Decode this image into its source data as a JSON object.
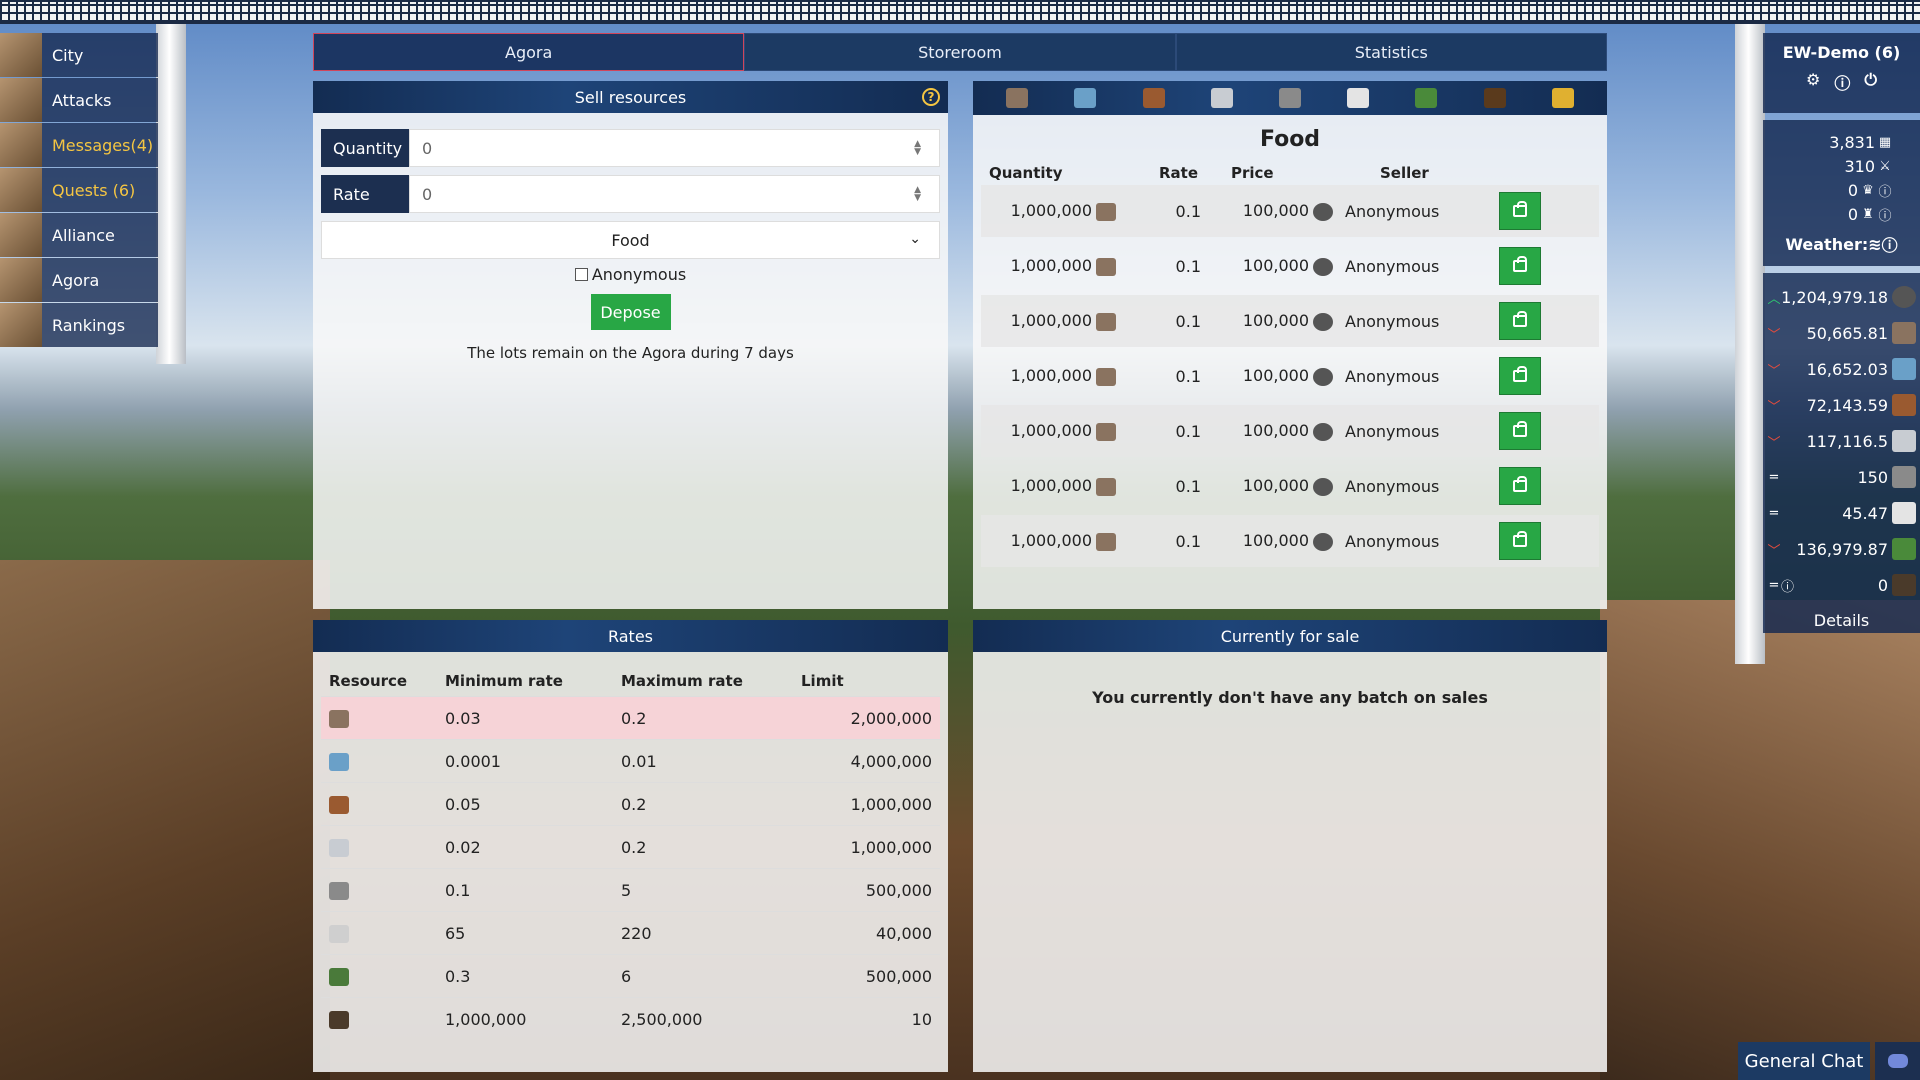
{
  "tabs": [
    {
      "label": "Agora"
    },
    {
      "label": "Storeroom"
    },
    {
      "label": "Statistics"
    }
  ],
  "nav": [
    {
      "label": "City"
    },
    {
      "label": "Attacks"
    },
    {
      "label": "Messages(4)"
    },
    {
      "label": "Quests (6)"
    },
    {
      "label": "Alliance"
    },
    {
      "label": "Agora"
    },
    {
      "label": "Rankings"
    }
  ],
  "sell": {
    "title": "Sell resources",
    "help": "?",
    "quantity_label": "Quantity",
    "quantity_value": "0",
    "rate_label": "Rate",
    "rate_value": "0",
    "resource": "Food",
    "anonymous_label": "Anonymous",
    "depose_label": "Depose",
    "note": "The lots remain on the Agora during 7 days"
  },
  "market": {
    "title": "Food",
    "headers": {
      "quantity": "Quantity",
      "rate": "Rate",
      "price": "Price",
      "seller": "Seller"
    },
    "rows": [
      {
        "quantity": "1,000,000",
        "rate": "0.1",
        "price": "100,000",
        "seller": "Anonymous"
      },
      {
        "quantity": "1,000,000",
        "rate": "0.1",
        "price": "100,000",
        "seller": "Anonymous"
      },
      {
        "quantity": "1,000,000",
        "rate": "0.1",
        "price": "100,000",
        "seller": "Anonymous"
      },
      {
        "quantity": "1,000,000",
        "rate": "0.1",
        "price": "100,000",
        "seller": "Anonymous"
      },
      {
        "quantity": "1,000,000",
        "rate": "0.1",
        "price": "100,000",
        "seller": "Anonymous"
      },
      {
        "quantity": "1,000,000",
        "rate": "0.1",
        "price": "100,000",
        "seller": "Anonymous"
      },
      {
        "quantity": "1,000,000",
        "rate": "0.1",
        "price": "100,000",
        "seller": "Anonymous"
      }
    ]
  },
  "rates": {
    "title": "Rates",
    "headers": {
      "resource": "Resource",
      "min": "Minimum rate",
      "max": "Maximum rate",
      "limit": "Limit"
    },
    "rows": [
      {
        "min": "0.03",
        "max": "0.2",
        "limit": "2,000,000"
      },
      {
        "min": "0.0001",
        "max": "0.01",
        "limit": "4,000,000"
      },
      {
        "min": "0.05",
        "max": "0.2",
        "limit": "1,000,000"
      },
      {
        "min": "0.02",
        "max": "0.2",
        "limit": "1,000,000"
      },
      {
        "min": "0.1",
        "max": "5",
        "limit": "500,000"
      },
      {
        "min": "65",
        "max": "220",
        "limit": "40,000"
      },
      {
        "min": "0.3",
        "max": "6",
        "limit": "500,000"
      },
      {
        "min": "1,000,000",
        "max": "2,500,000",
        "limit": "10"
      }
    ]
  },
  "forsale": {
    "title": "Currently for sale",
    "empty": "You currently don't have any batch on sales"
  },
  "user": {
    "name": "EW-Demo (6)"
  },
  "stats": {
    "s1": "3,831",
    "s2": "310",
    "s3": "0",
    "s4": "0",
    "weather": "Weather:"
  },
  "resources": [
    {
      "value": "1,204,979.18",
      "trend": "up"
    },
    {
      "value": "50,665.81",
      "trend": "dn"
    },
    {
      "value": "16,652.03",
      "trend": "dn"
    },
    {
      "value": "72,143.59",
      "trend": "dn"
    },
    {
      "value": "117,116.5",
      "trend": "dn"
    },
    {
      "value": "150",
      "trend": "eq"
    },
    {
      "value": "45.47",
      "trend": "eq"
    },
    {
      "value": "136,979.87",
      "trend": "dn"
    },
    {
      "value": "0",
      "trend": "eq"
    }
  ],
  "details": "Details",
  "chat": "General Chat",
  "colors": {
    "accent_green": "#28a745",
    "nav_bg": "#1c3a63",
    "highlight_row": "#f6d3d7",
    "gold": "#f4c542"
  }
}
